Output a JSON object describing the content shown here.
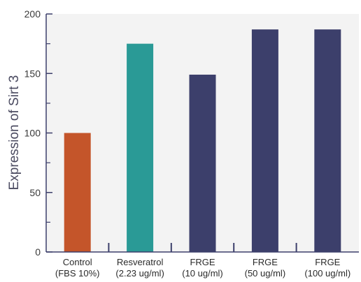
{
  "chart_data": {
    "type": "bar",
    "title": "",
    "xlabel": "",
    "ylabel": "Expression of Sirt 3",
    "ylim": [
      0,
      200
    ],
    "yticks": [
      0,
      50,
      100,
      150,
      200
    ],
    "categories": [
      [
        "Control",
        "(FBS 10%)"
      ],
      [
        "Resveratrol",
        "(2.23 ug/ml)"
      ],
      [
        "FRGE",
        "(10 ug/ml)"
      ],
      [
        "FRGE",
        "(50 ug/ml)"
      ],
      [
        "FRGE",
        "(100 ug/ml)"
      ]
    ],
    "values": [
      100,
      175,
      149,
      187,
      187
    ],
    "bar_colors": [
      "#c4552a",
      "#2a9a96",
      "#3c3f6b",
      "#3c3f6b",
      "#3c3f6b"
    ],
    "plot_background": "#f3f3f3",
    "axis_color": "#3c3f6b",
    "grid": false
  }
}
